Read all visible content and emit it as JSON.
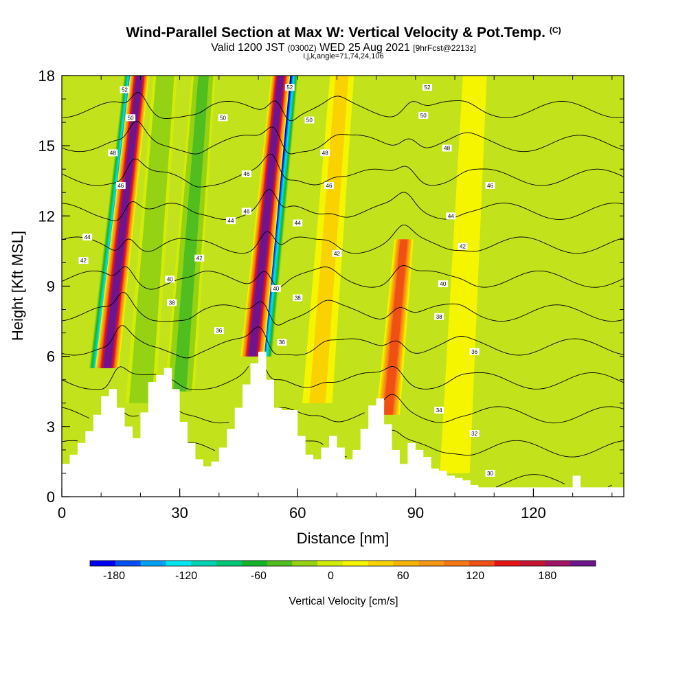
{
  "header": {
    "title": "Wind-Parallel Section at Max W: Vertical Velocity & Pot.Temp.",
    "title_mark": "(C)",
    "valid_prefix": "Valid 1200 JST",
    "valid_z": "(0300Z)",
    "valid_date": "WED 25 Aug 2021",
    "forecast": "[9hrFcst@2213z]",
    "params": "i,j,k,angle=71,74,24,106"
  },
  "colors": {
    "background_field": "#c2e21c",
    "terrain": "#ffffff",
    "contour": "#000000",
    "colorbar": [
      "#0000f0",
      "#0050f5",
      "#00a0f5",
      "#00e6f0",
      "#00d2b4",
      "#00c878",
      "#14b428",
      "#50be1e",
      "#96d214",
      "#d2ec0a",
      "#f5f500",
      "#fad200",
      "#f5b400",
      "#f59614",
      "#f57814",
      "#f05014",
      "#e61414",
      "#c81432",
      "#a01464",
      "#6e148c"
    ]
  },
  "chart_data": {
    "type": "heatmap",
    "title": "Wind-Parallel Section at Max W: Vertical Velocity & Pot.Temp. (C)",
    "xlabel": "Distance [nm]",
    "ylabel": "Height [Kft MSL]",
    "xlim": [
      0,
      143
    ],
    "ylim": [
      0,
      18
    ],
    "x_ticks": [
      0,
      30,
      60,
      90,
      120
    ],
    "y_ticks": [
      0,
      3,
      6,
      9,
      12,
      15,
      18
    ],
    "colorbar": {
      "label": "Vertical Velocity [cm/s]",
      "ticks": [
        -180,
        -120,
        -60,
        0,
        60,
        120,
        180
      ],
      "range": [
        -200,
        220
      ]
    },
    "terrain_profile": {
      "x": [
        0,
        2,
        4,
        6,
        8,
        10,
        12,
        14,
        16,
        18,
        20,
        22,
        24,
        26,
        28,
        30,
        32,
        34,
        36,
        38,
        40,
        42,
        44,
        46,
        48,
        50,
        52,
        54,
        56,
        58,
        60,
        62,
        64,
        66,
        68,
        70,
        72,
        74,
        76,
        78,
        80,
        82,
        84,
        86,
        88,
        90,
        92,
        94,
        96,
        98,
        100,
        102,
        104,
        106,
        108,
        110,
        112,
        114,
        116,
        118,
        120,
        122,
        124,
        126,
        128,
        130,
        132,
        134,
        136,
        138,
        140,
        143
      ],
      "y": [
        1.4,
        1.8,
        2.3,
        2.8,
        3.5,
        4.3,
        4.6,
        3.8,
        3.0,
        2.5,
        3.6,
        4.9,
        5.2,
        5.5,
        4.6,
        3.2,
        2.3,
        1.6,
        1.3,
        1.5,
        2.1,
        2.9,
        3.8,
        4.8,
        5.7,
        6.2,
        5.0,
        3.8,
        3.7,
        3.7,
        2.6,
        1.8,
        1.6,
        2.1,
        2.6,
        2.1,
        1.6,
        2.0,
        2.9,
        3.9,
        4.2,
        3.1,
        2.0,
        1.4,
        2.3,
        2.0,
        1.7,
        1.2,
        1.1,
        0.9,
        0.8,
        0.7,
        0.5,
        0.4,
        0.4,
        0.4,
        0.4,
        0.4,
        0.4,
        0.4,
        0.4,
        0.4,
        0.4,
        0.4,
        0.4,
        0.9,
        0.4,
        0.4,
        0.4,
        0.4,
        0.4,
        1.3
      ]
    },
    "updrafts": [
      {
        "x_base": 11.5,
        "tilt": 0.22,
        "peak_w": 200,
        "z_bottom": 5.5,
        "z_top": 18
      },
      {
        "x_base": 48.5,
        "tilt": 0.2,
        "peak_w": 200,
        "z_bottom": 6.0,
        "z_top": 18
      },
      {
        "x_base": 83.0,
        "tilt": 0.18,
        "peak_w": 120,
        "z_bottom": 3.5,
        "z_top": 11
      },
      {
        "x_base": 65.0,
        "tilt": 0.15,
        "peak_w": 50,
        "z_bottom": 4.0,
        "z_top": 18
      },
      {
        "x_base": 100.0,
        "tilt": 0.1,
        "peak_w": 25,
        "z_bottom": 1.0,
        "z_top": 18
      }
    ],
    "downdrafts": [
      {
        "x_base": 10.0,
        "tilt": 0.22,
        "peak_w": -180,
        "z_bottom": 5.5,
        "z_top": 18
      },
      {
        "x_base": 50.5,
        "tilt": 0.2,
        "peak_w": -190,
        "z_bottom": 6.0,
        "z_top": 18
      },
      {
        "x_base": 30.0,
        "tilt": 0.15,
        "peak_w": -40,
        "z_bottom": 4.5,
        "z_top": 18
      },
      {
        "x_base": 20.0,
        "tilt": 0.15,
        "peak_w": -30,
        "z_bottom": 4.0,
        "z_top": 18
      }
    ],
    "pot_temp_contours_C": [
      30,
      32,
      34,
      36,
      38,
      40,
      42,
      44,
      46,
      48,
      50,
      52
    ],
    "contour_labels": [
      {
        "x": 16.0,
        "z": 17.4,
        "text": "52"
      },
      {
        "x": 58.0,
        "z": 17.5,
        "text": "52"
      },
      {
        "x": 93.0,
        "z": 17.5,
        "text": "52"
      },
      {
        "x": 17.5,
        "z": 16.2,
        "text": "50"
      },
      {
        "x": 41.0,
        "z": 16.2,
        "text": "50"
      },
      {
        "x": 63.0,
        "z": 16.1,
        "text": "50"
      },
      {
        "x": 92.0,
        "z": 16.3,
        "text": "50"
      },
      {
        "x": 13.0,
        "z": 14.7,
        "text": "48"
      },
      {
        "x": 67.0,
        "z": 14.7,
        "text": "48"
      },
      {
        "x": 98.0,
        "z": 14.9,
        "text": "48"
      },
      {
        "x": 15.0,
        "z": 13.3,
        "text": "46"
      },
      {
        "x": 47.0,
        "z": 13.8,
        "text": "46"
      },
      {
        "x": 68.0,
        "z": 13.3,
        "text": "46"
      },
      {
        "x": 109.0,
        "z": 13.3,
        "text": "46"
      },
      {
        "x": 47.0,
        "z": 12.2,
        "text": "46"
      },
      {
        "x": 6.5,
        "z": 11.1,
        "text": "44"
      },
      {
        "x": 43.0,
        "z": 11.8,
        "text": "44"
      },
      {
        "x": 60.0,
        "z": 11.7,
        "text": "44"
      },
      {
        "x": 99.0,
        "z": 12.0,
        "text": "44"
      },
      {
        "x": 5.5,
        "z": 10.1,
        "text": "42"
      },
      {
        "x": 35.0,
        "z": 10.2,
        "text": "42"
      },
      {
        "x": 70.0,
        "z": 10.4,
        "text": "42"
      },
      {
        "x": 102.0,
        "z": 10.7,
        "text": "42"
      },
      {
        "x": 27.5,
        "z": 9.3,
        "text": "40"
      },
      {
        "x": 54.5,
        "z": 8.9,
        "text": "40"
      },
      {
        "x": 97.0,
        "z": 9.1,
        "text": "40"
      },
      {
        "x": 28.0,
        "z": 8.3,
        "text": "38"
      },
      {
        "x": 60.0,
        "z": 8.5,
        "text": "38"
      },
      {
        "x": 96.0,
        "z": 7.7,
        "text": "38"
      },
      {
        "x": 40.0,
        "z": 7.1,
        "text": "36"
      },
      {
        "x": 56.0,
        "z": 6.6,
        "text": "36"
      },
      {
        "x": 105.0,
        "z": 6.2,
        "text": "36"
      },
      {
        "x": 96.0,
        "z": 3.7,
        "text": "34"
      },
      {
        "x": 105.0,
        "z": 2.7,
        "text": "32"
      },
      {
        "x": 109.0,
        "z": 1.0,
        "text": "30"
      }
    ]
  }
}
